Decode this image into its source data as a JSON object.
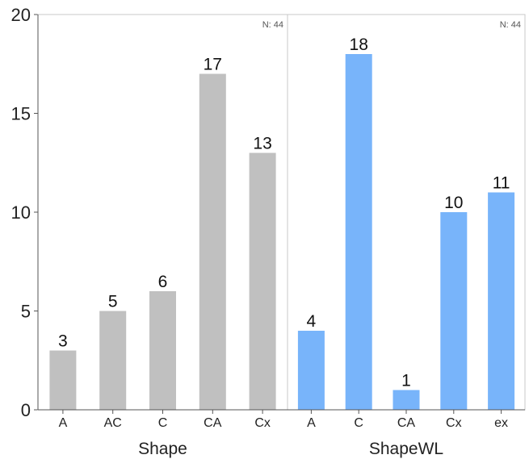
{
  "chart_data": {
    "type": "bar",
    "ylim": [
      0,
      20
    ],
    "yticks": [
      0,
      5,
      10,
      15,
      20
    ],
    "grid": false,
    "panels": [
      {
        "xlabel": "Shape",
        "n_label": "N: 44",
        "color": "#c0c0c0",
        "categories": [
          "A",
          "AC",
          "C",
          "CA",
          "Cx"
        ],
        "values": [
          3,
          5,
          6,
          17,
          13
        ]
      },
      {
        "xlabel": "ShapeWL",
        "n_label": "N: 44",
        "color": "#78b4fa",
        "categories": [
          "A",
          "C",
          "CA",
          "Cx",
          "ex"
        ],
        "values": [
          4,
          18,
          1,
          10,
          11
        ]
      }
    ]
  }
}
